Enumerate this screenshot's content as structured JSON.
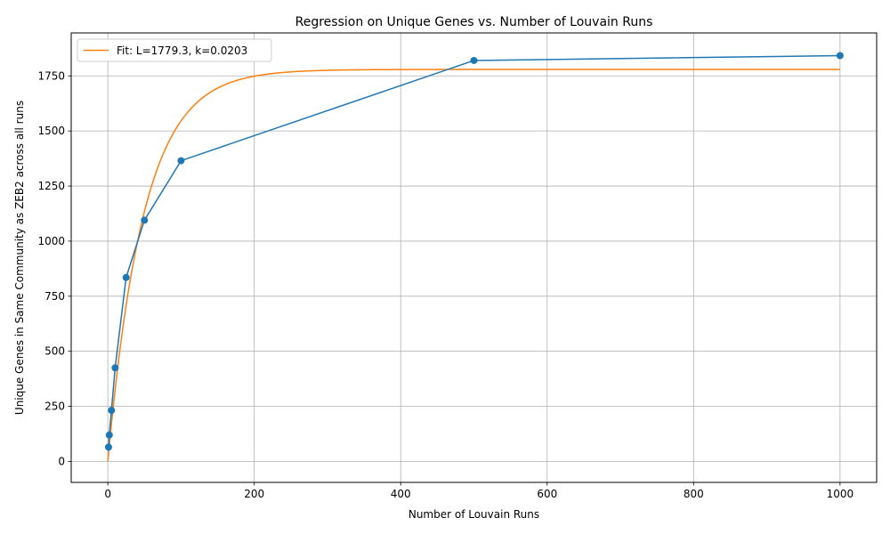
{
  "chart_data": {
    "type": "line",
    "title": "Regression on Unique Genes vs. Number of Louvain Runs",
    "xlabel": "Number of Louvain Runs",
    "ylabel": "Unique Genes in Same Community as ZEB2 across all runs",
    "xlim": [
      -50,
      1050
    ],
    "ylim": [
      -95,
      1945
    ],
    "xticks": [
      0,
      200,
      400,
      600,
      800,
      1000
    ],
    "yticks": [
      0,
      250,
      500,
      750,
      1000,
      1250,
      1500,
      1750
    ],
    "grid": true,
    "legend_position": "top-left",
    "series": [
      {
        "kind": "data",
        "color": "#1f77b4",
        "marker": "circle",
        "x": [
          1,
          2,
          5,
          10,
          25,
          50,
          100,
          500,
          1000
        ],
        "y": [
          65,
          120,
          232,
          425,
          835,
          1095,
          1365,
          1820,
          1842
        ]
      },
      {
        "kind": "fit",
        "name": "Fit: L=1779.3, k=0.0203",
        "color": "#ff7f0e",
        "L": 1779.3,
        "k": 0.0203,
        "x_range": [
          0,
          1000
        ]
      }
    ]
  }
}
